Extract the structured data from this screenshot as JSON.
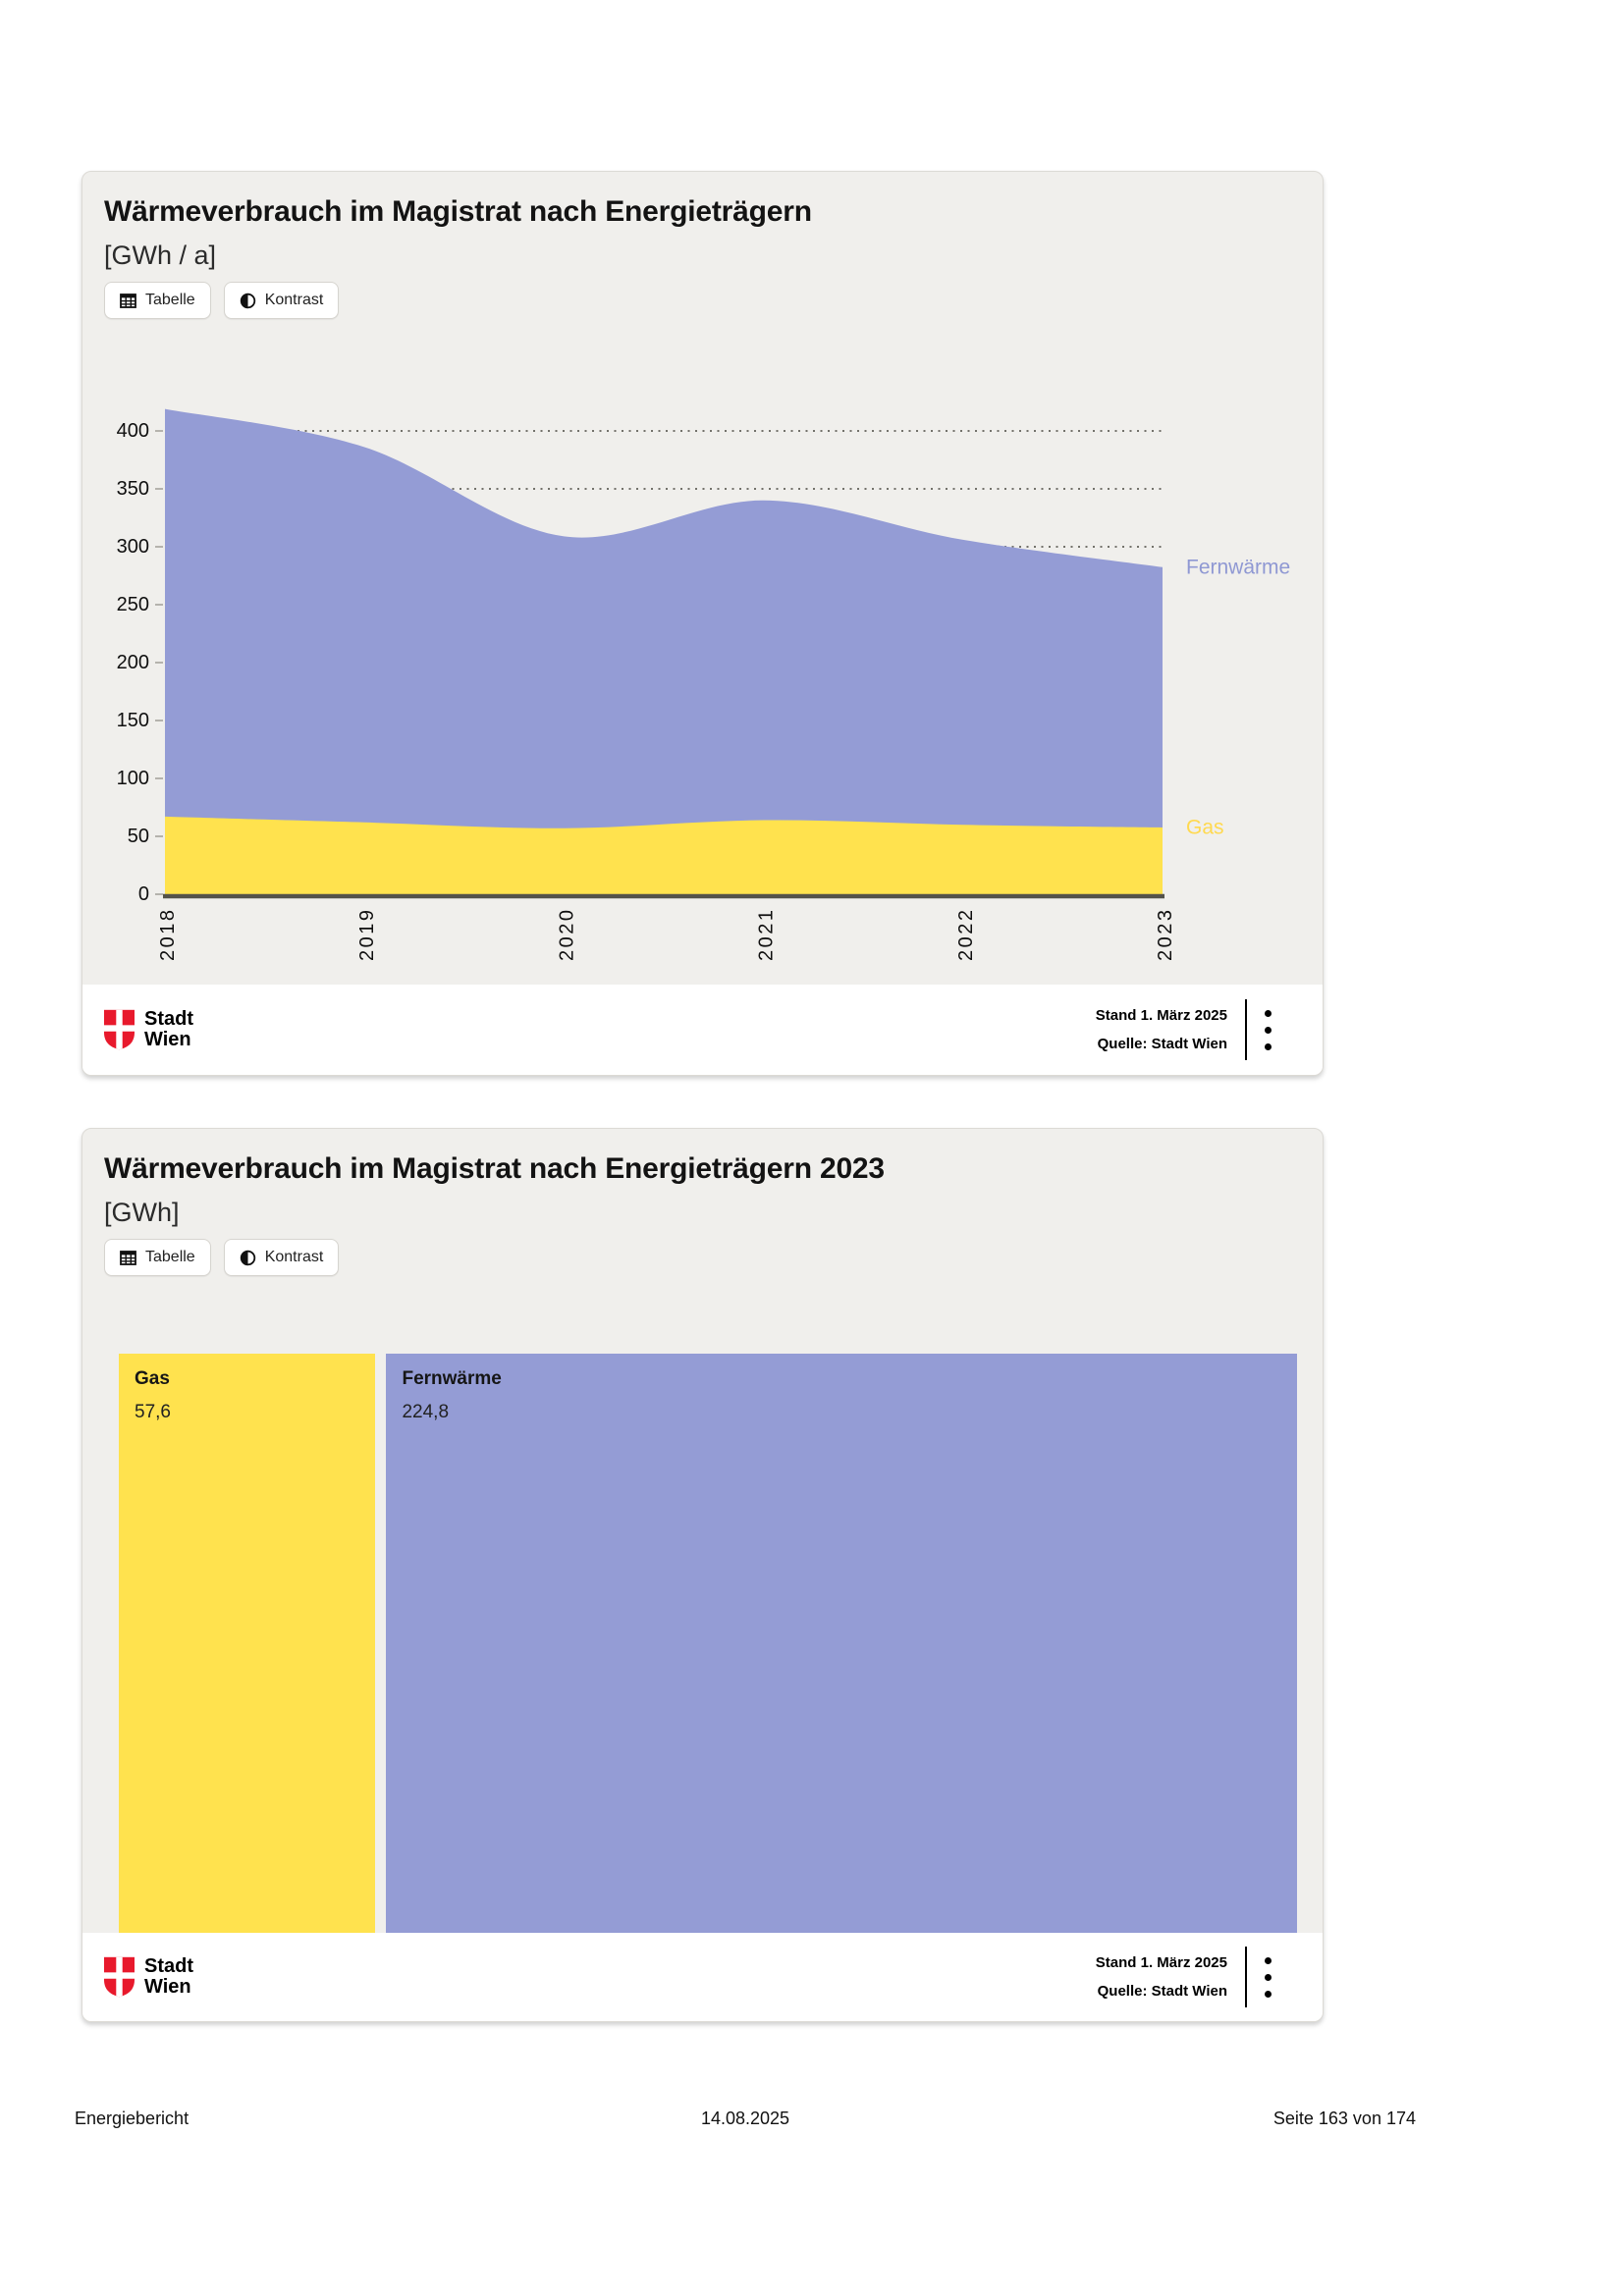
{
  "ui": {
    "toolbar": {
      "tabelle": "Tabelle",
      "kontrast": "Kontrast"
    },
    "footer": {
      "stand": "Stand 1. März 2025",
      "quelle": "Quelle: Stadt Wien",
      "logo_line1": "Stadt",
      "logo_line2": "Wien"
    }
  },
  "card1": {
    "title": "Wärmeverbrauch im Magistrat nach Energieträgern",
    "subtitle": "[GWh / a]"
  },
  "card2": {
    "title": "Wärmeverbrauch im Magistrat nach Energieträgern 2023",
    "subtitle": "[GWh]"
  },
  "page_footer": {
    "left": "Energiebericht",
    "center": "14.08.2025",
    "right": "Seite 163 von 174"
  },
  "colors": {
    "fernwaerme": "#949cd5",
    "fernwaerme_label": "#8f98d3",
    "gas": "#ffe24e",
    "gas_label": "#ffd94f",
    "axis": "#53524a",
    "grid": "#73726b",
    "tick": "#b5b3ad",
    "card_bg": "#f0efec",
    "wien_red": "#e8192c"
  },
  "chart_data": [
    {
      "type": "area",
      "stacked": true,
      "title": "Wärmeverbrauch im Magistrat nach Energieträgern",
      "unit": "GWh / a",
      "x": [
        "2018",
        "2019",
        "2020",
        "2021",
        "2022",
        "2023"
      ],
      "series": [
        {
          "name": "Gas",
          "key": "gas",
          "color": "#ffe24e",
          "label_color": "#ffd94f",
          "values": [
            67,
            62,
            57,
            64,
            60,
            57.6
          ]
        },
        {
          "name": "Fernwärme",
          "key": "fernwaerme",
          "color": "#949cd5",
          "label_color": "#8f98d3",
          "values": [
            352,
            324,
            252,
            276,
            246,
            224.8
          ]
        }
      ],
      "stacked_totals": [
        419,
        386,
        309,
        340,
        306,
        282.4
      ],
      "ylim": [
        0,
        420
      ],
      "yticks": [
        0,
        50,
        100,
        150,
        200,
        250,
        300,
        350,
        400
      ],
      "grid": "dotted-horizontal",
      "legend_position": "right-of-last-point"
    },
    {
      "type": "treemap",
      "title": "Wärmeverbrauch im Magistrat nach Energieträgern 2023",
      "unit": "GWh",
      "items": [
        {
          "label": "Gas",
          "key": "gas",
          "value": 57.6,
          "display": "57,6",
          "color": "#ffe24e"
        },
        {
          "label": "Fernwärme",
          "key": "fernwaerme",
          "value": 224.8,
          "display": "224,8",
          "color": "#949cd5"
        }
      ]
    }
  ]
}
